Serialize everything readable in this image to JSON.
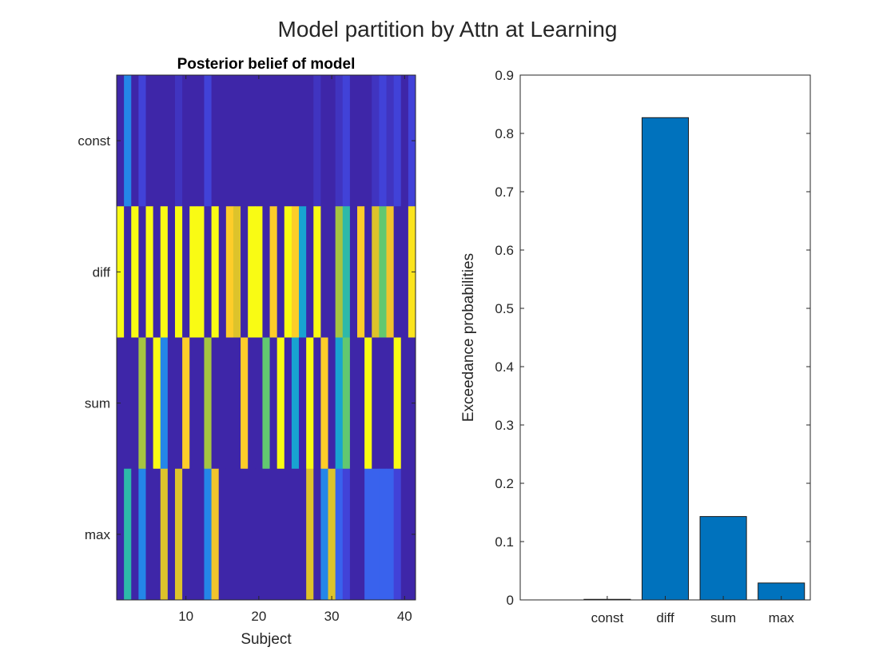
{
  "figure": {
    "title": "Model partition by Attn at Learning"
  },
  "colors": {
    "bar_fill": "#0072bd",
    "bar_edge": "#1a1a1a",
    "axis": "#262626"
  },
  "chart_data": [
    {
      "type": "heatmap",
      "title": "Posterior belief of model",
      "xlabel": "Subject",
      "ylabel": "",
      "rows": [
        "const",
        "diff",
        "sum",
        "max"
      ],
      "x_ticks": [
        10,
        20,
        30,
        40
      ],
      "x_range": [
        0.5,
        41.5
      ],
      "color_range": [
        0,
        1
      ],
      "colormap": "parula",
      "values": [
        [
          0.0,
          0.3,
          0.0,
          0.1,
          0.0,
          0.0,
          0.0,
          0.0,
          0.05,
          0.0,
          0.0,
          0.0,
          0.1,
          0.0,
          0.0,
          0.0,
          0.0,
          0.0,
          0.0,
          0.0,
          0.0,
          0.0,
          0.0,
          0.0,
          0.0,
          0.0,
          0.0,
          0.05,
          0.0,
          0.0,
          0.05,
          0.1,
          0.0,
          0.0,
          0.0,
          0.05,
          0.1,
          0.05,
          0.1,
          0.0,
          0.1
        ],
        [
          1.0,
          0.0,
          1.0,
          0.0,
          1.0,
          0.0,
          1.0,
          0.0,
          1.0,
          0.0,
          1.0,
          1.0,
          0.0,
          1.0,
          0.0,
          0.9,
          0.8,
          0.0,
          1.0,
          1.0,
          0.0,
          0.9,
          0.0,
          1.0,
          0.9,
          0.4,
          0.0,
          1.0,
          0.0,
          0.0,
          0.7,
          0.5,
          0.0,
          0.9,
          0.0,
          0.8,
          0.6,
          0.85,
          0.0,
          0.0,
          0.95
        ],
        [
          0.0,
          0.0,
          0.0,
          0.7,
          0.0,
          1.0,
          0.3,
          0.0,
          0.0,
          0.9,
          0.0,
          0.0,
          0.7,
          0.0,
          0.0,
          0.0,
          0.0,
          0.9,
          0.0,
          0.0,
          0.6,
          0.0,
          1.0,
          0.0,
          0.4,
          0.0,
          1.0,
          0.0,
          0.9,
          0.0,
          0.4,
          0.6,
          0.0,
          0.0,
          1.0,
          0.0,
          0.0,
          0.0,
          1.0,
          0.0,
          0.0
        ],
        [
          0.0,
          0.5,
          0.0,
          0.3,
          0.0,
          0.0,
          0.8,
          0.0,
          0.8,
          0.0,
          0.0,
          0.0,
          0.3,
          0.85,
          0.0,
          0.0,
          0.0,
          0.0,
          0.0,
          0.0,
          0.0,
          0.0,
          0.0,
          0.0,
          0.0,
          0.0,
          0.8,
          0.0,
          0.3,
          0.8,
          0.2,
          0.1,
          0.0,
          0.0,
          0.2,
          0.2,
          0.2,
          0.2,
          0.1,
          0.0,
          0.0
        ]
      ]
    },
    {
      "type": "bar",
      "title": "",
      "xlabel": "",
      "ylabel": "Exceedance probabilities",
      "categories": [
        "const",
        "diff",
        "sum",
        "max"
      ],
      "values": [
        0.001,
        0.827,
        0.143,
        0.029
      ],
      "ylim": [
        0,
        0.9
      ],
      "xlim": [
        -0.5,
        4.5
      ],
      "y_ticks": [
        0,
        0.1,
        0.2,
        0.3,
        0.4,
        0.5,
        0.6,
        0.7,
        0.8,
        0.9
      ],
      "y_tick_labels": [
        "0",
        "0.1",
        "0.2",
        "0.3",
        "0.4",
        "0.5",
        "0.6",
        "0.7",
        "0.8",
        "0.9"
      ],
      "grid": false
    }
  ]
}
